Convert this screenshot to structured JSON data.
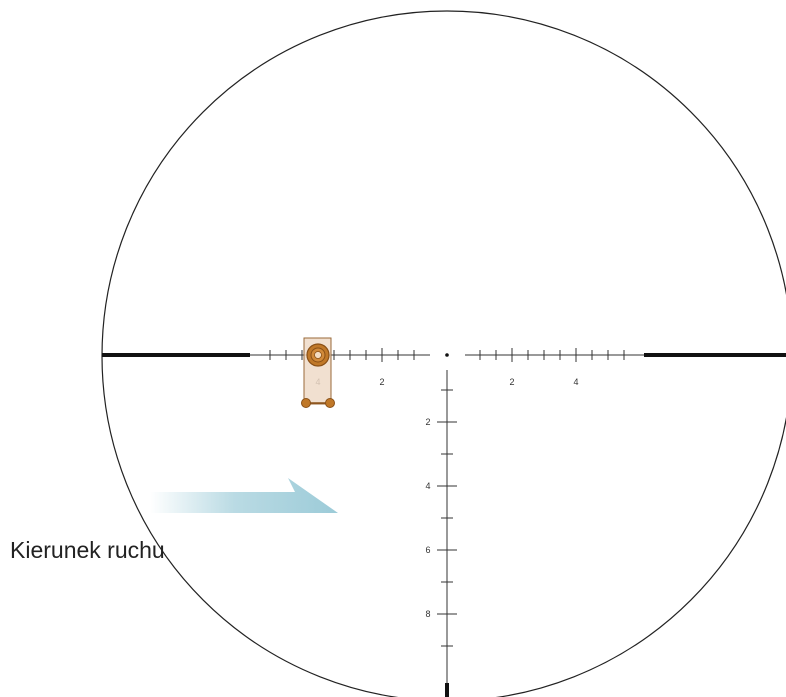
{
  "reticle": {
    "horizontal_labels_left": [
      "4",
      "2"
    ],
    "horizontal_labels_right": [
      "2",
      "4"
    ],
    "vertical_labels": [
      "2",
      "4",
      "6",
      "8"
    ]
  },
  "target": {
    "hold_value": "4",
    "colors": {
      "panel": "#eedbc8",
      "ring": "#c07828",
      "dark": "#8a5016"
    }
  },
  "direction": {
    "label": "Kierunek ruchu",
    "arrow_color": "#9ccbd8"
  },
  "colors": {
    "reticle": "#111111",
    "circle": "#222222"
  }
}
